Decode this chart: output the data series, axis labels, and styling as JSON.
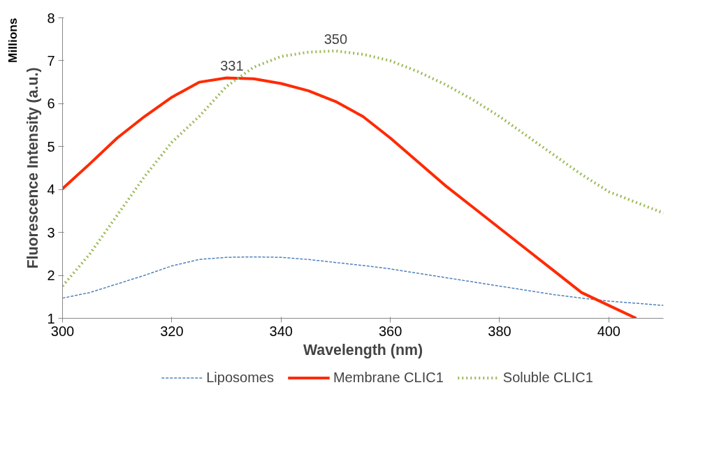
{
  "chart_data": {
    "type": "line",
    "xlabel": "Wavelength (nm)",
    "ylabel": "Fluorescence Intensity (a.u.)",
    "x": [
      300,
      305,
      310,
      315,
      320,
      325,
      330,
      335,
      340,
      345,
      350,
      355,
      360,
      365,
      370,
      375,
      380,
      385,
      390,
      395,
      400,
      405,
      410
    ],
    "series": [
      {
        "name": "Liposomes",
        "color": "#4f81bd",
        "line_style": "dashed",
        "values": [
          1.47,
          1.6,
          1.8,
          2.0,
          2.22,
          2.37,
          2.42,
          2.43,
          2.42,
          2.37,
          2.3,
          2.23,
          2.15,
          2.05,
          1.95,
          1.85,
          1.75,
          1.65,
          1.55,
          1.47,
          1.4,
          1.35,
          1.3
        ]
      },
      {
        "name": "Membrane CLIC1",
        "color": "#ff2a00",
        "line_style": "solid",
        "values": [
          4.02,
          4.6,
          5.2,
          5.7,
          6.15,
          6.5,
          6.6,
          6.58,
          6.47,
          6.3,
          6.05,
          5.7,
          5.2,
          4.65,
          4.1,
          3.6,
          3.1,
          2.6,
          2.1,
          1.6,
          1.3,
          1.0,
          null
        ]
      },
      {
        "name": "Soluble CLIC1",
        "color": "#9bbb59",
        "line_style": "dotted",
        "values": [
          1.75,
          2.5,
          3.4,
          4.3,
          5.1,
          5.7,
          6.4,
          6.85,
          7.1,
          7.2,
          7.23,
          7.15,
          7.0,
          6.75,
          6.45,
          6.1,
          5.7,
          5.25,
          4.8,
          4.35,
          3.95,
          3.7,
          3.45
        ]
      }
    ],
    "annotations": [
      "Millions",
      {
        "text": "331",
        "x": 331,
        "y": 6.61
      },
      {
        "text": "350",
        "x": 350,
        "y": 7.23
      }
    ],
    "xlim": [
      300,
      410
    ],
    "ylim": [
      1,
      8
    ],
    "xticks": [
      300,
      320,
      340,
      360,
      380,
      400
    ],
    "yticks": [
      1,
      2,
      3,
      4,
      5,
      6,
      7,
      8
    ],
    "grid": false,
    "legend": "bottom"
  }
}
